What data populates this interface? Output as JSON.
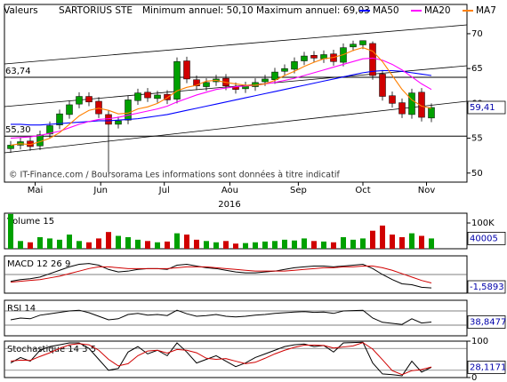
{
  "chart_data": [
    {
      "type": "candlestick",
      "label": "Valeurs",
      "title": "SARTORIUS STE",
      "subtitle": "Minimum annuel: 50,10 Maximum annuel: 69,03",
      "source": "© IT-Finance.com / Boursorama Les informations sont données à titre indicatif",
      "x_label": "2016",
      "up_color": "#00a000",
      "down_color": "#d00000",
      "xticks": [
        {
          "value": 2.5,
          "label": "Mai"
        },
        {
          "value": 9.2,
          "label": "Jun"
        },
        {
          "value": 15.7,
          "label": "Jul"
        },
        {
          "value": 22.4,
          "label": "Aou"
        },
        {
          "value": 29.4,
          "label": "Sep"
        },
        {
          "value": 36,
          "label": "Oct"
        },
        {
          "value": 42.5,
          "label": "Nov"
        }
      ],
      "ylim": [
        48.7,
        74.2
      ],
      "yticks": [
        50,
        55,
        60,
        65,
        70
      ],
      "levels": [
        {
          "value": 63.74,
          "label": "63,74"
        },
        {
          "value": 55.3,
          "label": "55,30"
        }
      ],
      "last": {
        "value": 59.41,
        "label": "59,41"
      },
      "open": [
        53.5,
        54.0,
        54.6,
        53.9,
        55.6,
        56.9,
        58.4,
        59.9,
        61.0,
        60.3,
        58.4,
        57.0,
        57.6,
        60.4,
        61.6,
        60.7,
        61.3,
        60.6,
        66.1,
        63.4,
        62.4,
        63.1,
        63.6,
        62.4,
        62.1,
        62.4,
        63.1,
        63.4,
        64.6,
        64.9,
        66.1,
        66.9,
        66.4,
        67.1,
        65.9,
        68.1,
        68.4,
        68.6,
        64.2,
        61.1,
        60.1,
        58.4,
        61.6,
        57.9
      ],
      "high": [
        54.6,
        55.1,
        55.2,
        56.1,
        57.4,
        59.1,
        60.4,
        61.6,
        61.6,
        60.9,
        59.0,
        58.1,
        61.1,
        62.1,
        62.2,
        61.8,
        61.9,
        66.6,
        66.7,
        64.0,
        63.6,
        64.1,
        64.2,
        63.0,
        63.1,
        63.6,
        64.1,
        65.1,
        65.6,
        66.6,
        67.4,
        67.5,
        67.6,
        67.7,
        68.6,
        69.0,
        69.03,
        68.9,
        64.8,
        61.7,
        60.7,
        62.1,
        62.2,
        60.0
      ],
      "low": [
        52.9,
        53.4,
        53.2,
        53.3,
        55.0,
        56.3,
        57.8,
        59.3,
        59.6,
        57.9,
        50.1,
        56.4,
        57.0,
        59.8,
        60.2,
        60.1,
        59.9,
        60.0,
        62.9,
        61.9,
        61.8,
        62.5,
        61.9,
        61.4,
        61.5,
        61.8,
        62.5,
        62.8,
        64.0,
        64.3,
        65.5,
        65.9,
        65.8,
        65.4,
        65.3,
        67.5,
        67.8,
        63.4,
        60.4,
        59.4,
        57.9,
        57.8,
        57.4,
        57.3
      ],
      "close": [
        54.0,
        54.5,
        53.8,
        55.5,
        56.8,
        58.5,
        59.8,
        61.0,
        60.2,
        58.5,
        57.0,
        57.5,
        60.5,
        61.5,
        60.8,
        61.2,
        60.5,
        66.0,
        63.5,
        62.5,
        63.0,
        63.5,
        62.5,
        62.0,
        62.5,
        63.0,
        63.5,
        64.5,
        65.0,
        66.0,
        66.8,
        66.5,
        67.0,
        66.0,
        68.0,
        68.5,
        69.0,
        64.0,
        61.0,
        60.0,
        58.5,
        61.5,
        58.0,
        59.41
      ],
      "series": [
        {
          "name": "MA50",
          "color": "#0000ff",
          "values": [
            57,
            57,
            56.9,
            56.9,
            57,
            57.1,
            57.2,
            57.3,
            57.4,
            57.5,
            57.5,
            57.6,
            57.7,
            57.8,
            58,
            58.2,
            58.4,
            58.7,
            59,
            59.3,
            59.6,
            59.9,
            60.2,
            60.5,
            60.8,
            61.1,
            61.4,
            61.7,
            62,
            62.3,
            62.6,
            62.9,
            63.2,
            63.5,
            63.8,
            64.1,
            64.4,
            64.6,
            64.7,
            64.7,
            64.6,
            64.4,
            64.2,
            64
          ]
        },
        {
          "name": "MA20",
          "color": "#ff00ff",
          "values": [
            55,
            55.1,
            55.2,
            55.4,
            55.7,
            56,
            56.5,
            57,
            57.4,
            57.7,
            57.8,
            58,
            58.3,
            58.6,
            58.9,
            59.2,
            59.6,
            60.2,
            60.7,
            61.2,
            61.6,
            62,
            62.2,
            62.4,
            62.5,
            62.6,
            62.8,
            63,
            63.3,
            63.6,
            64,
            64.4,
            64.8,
            65.2,
            65.6,
            66,
            66.4,
            66.5,
            66.2,
            65.6,
            64.8,
            63.8,
            62.8,
            62
          ]
        },
        {
          "name": "MA7",
          "color": "#ff8000",
          "values": [
            54,
            54.2,
            54.1,
            54.5,
            55,
            55.8,
            57,
            58.2,
            59,
            59.3,
            59,
            58.5,
            58.6,
            59.2,
            59.5,
            60,
            60.8,
            61.8,
            62.3,
            62.6,
            63.2,
            63.3,
            63,
            62.8,
            62.6,
            62.6,
            62.8,
            63.3,
            64,
            64.6,
            65.3,
            65.9,
            66.4,
            66.6,
            67,
            67.6,
            68,
            67.5,
            66,
            64,
            62,
            60.5,
            59.6,
            59.3
          ]
        }
      ]
    },
    {
      "type": "bar",
      "title": "Volume 15",
      "ylim": [
        0,
        138000
      ],
      "yticks": [
        {
          "value": 100000,
          "label": "100K"
        }
      ],
      "last": {
        "value": 40005,
        "label": "40005"
      },
      "values": [
        135000,
        30000,
        25000,
        45000,
        40000,
        35000,
        55000,
        30000,
        25000,
        40000,
        65000,
        50000,
        45000,
        35000,
        30000,
        25000,
        28000,
        60000,
        55000,
        35000,
        30000,
        25000,
        30000,
        20000,
        22000,
        25000,
        28000,
        30000,
        35000,
        32000,
        40000,
        30000,
        28000,
        25000,
        45000,
        35000,
        40000,
        70000,
        90000,
        55000,
        45000,
        60000,
        50000,
        40005
      ]
    },
    {
      "type": "line",
      "title": "MACD 12 26 9",
      "ylim": [
        -2.2,
        2.2
      ],
      "levels": [
        0
      ],
      "last": {
        "value": -1.5893,
        "label": "-1,5893"
      },
      "series": [
        {
          "color": "#000000",
          "values": [
            -0.8,
            -0.6,
            -0.5,
            -0.3,
            0.1,
            0.5,
            0.9,
            1.2,
            1.3,
            1.1,
            0.6,
            0.3,
            0.4,
            0.6,
            0.7,
            0.7,
            0.6,
            1.1,
            1.2,
            1.0,
            0.8,
            0.7,
            0.5,
            0.3,
            0.2,
            0.2,
            0.3,
            0.4,
            0.6,
            0.8,
            0.9,
            1.0,
            1.0,
            0.9,
            1.0,
            1.1,
            1.2,
            0.7,
            0.0,
            -0.6,
            -1.1,
            -1.2,
            -1.5,
            -1.5893
          ]
        },
        {
          "color": "#d00000",
          "values": [
            -0.9,
            -0.8,
            -0.7,
            -0.6,
            -0.4,
            -0.2,
            0.1,
            0.4,
            0.7,
            0.9,
            0.9,
            0.8,
            0.7,
            0.7,
            0.7,
            0.7,
            0.7,
            0.8,
            0.9,
            0.9,
            0.9,
            0.8,
            0.7,
            0.6,
            0.5,
            0.4,
            0.4,
            0.4,
            0.4,
            0.5,
            0.6,
            0.7,
            0.8,
            0.8,
            0.9,
            0.9,
            1.0,
            1.0,
            0.8,
            0.5,
            0.1,
            -0.3,
            -0.7,
            -1.0
          ]
        }
      ]
    },
    {
      "type": "line",
      "title": "RSI 14",
      "ylim": [
        0,
        100
      ],
      "levels": [
        30,
        70
      ],
      "last": {
        "value": 38.8477,
        "label": "38,8477"
      },
      "series": [
        {
          "color": "#000000",
          "values": [
            45,
            50,
            48,
            58,
            62,
            66,
            70,
            72,
            65,
            55,
            45,
            48,
            60,
            63,
            58,
            60,
            57,
            72,
            62,
            55,
            57,
            60,
            55,
            53,
            55,
            58,
            60,
            63,
            65,
            67,
            68,
            66,
            67,
            63,
            70,
            71,
            72,
            50,
            38,
            35,
            32,
            48,
            36,
            38.8477
          ]
        }
      ]
    },
    {
      "type": "line",
      "title": "Stochastique 14 3 5",
      "ylim": [
        0,
        100
      ],
      "yticks": [
        0,
        100
      ],
      "levels": [
        20,
        80
      ],
      "last": {
        "value": 28.1171,
        "label": "28,1171"
      },
      "series": [
        {
          "color": "#000000",
          "values": [
            40,
            55,
            45,
            75,
            85,
            90,
            95,
            95,
            80,
            50,
            20,
            25,
            70,
            85,
            65,
            75,
            60,
            95,
            70,
            40,
            50,
            60,
            45,
            30,
            40,
            55,
            65,
            75,
            85,
            90,
            92,
            85,
            88,
            70,
            95,
            96,
            97,
            40,
            10,
            8,
            5,
            45,
            15,
            28.1171
          ]
        },
        {
          "color": "#d00000",
          "values": [
            45,
            48,
            47,
            58,
            68,
            80,
            90,
            93,
            90,
            75,
            50,
            32,
            38,
            60,
            73,
            75,
            67,
            77,
            75,
            68,
            53,
            50,
            52,
            45,
            38,
            42,
            53,
            65,
            75,
            83,
            89,
            89,
            88,
            81,
            84,
            87,
            96,
            78,
            49,
            19,
            8,
            19,
            22,
            29
          ]
        }
      ]
    }
  ]
}
